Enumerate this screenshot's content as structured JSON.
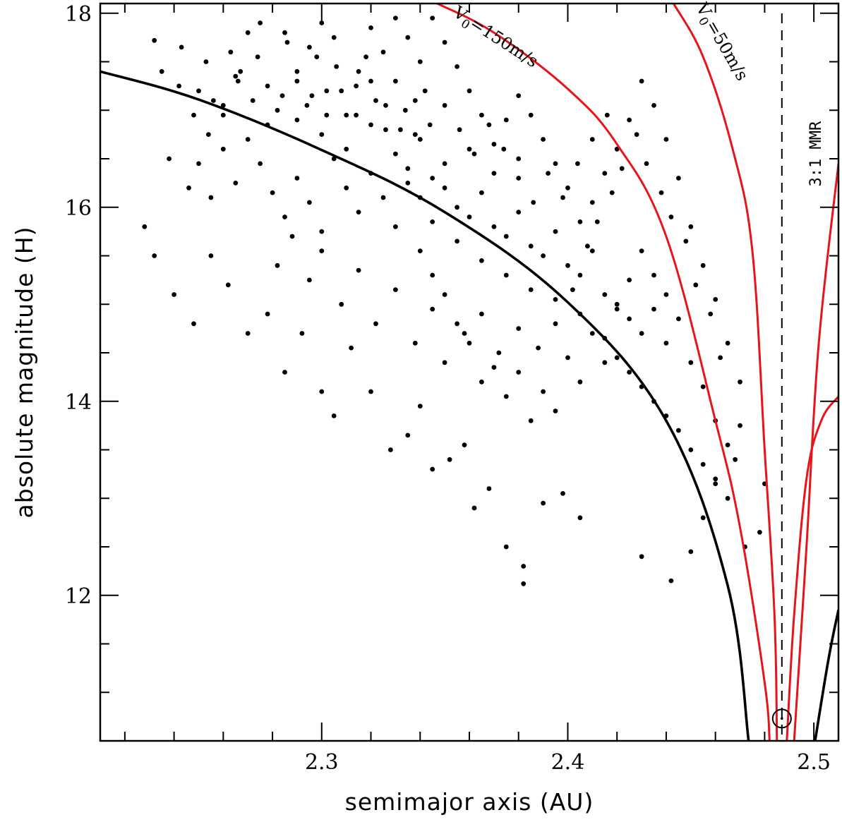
{
  "chart_data": {
    "type": "scatter",
    "title": "",
    "xlabel": "semimajor axis (AU)",
    "ylabel": "absolute magnitude (H)",
    "xlim": [
      2.21,
      2.51
    ],
    "ylim": [
      10.5,
      18.1
    ],
    "x_ticks": [
      2.3,
      2.4,
      2.5
    ],
    "y_ticks": [
      12,
      14,
      16,
      18
    ],
    "x_tick_labels": [
      "2.3",
      "2.4",
      "2.5"
    ],
    "y_tick_labels": [
      "12",
      "14",
      "16",
      "18"
    ],
    "grid": false,
    "legend": "none",
    "center_a": 2.487,
    "mmr_line": {
      "x": 2.487,
      "label": "3:1 MMR",
      "style": "dashed"
    },
    "center_marker": {
      "x": 2.487,
      "y": 10.73
    },
    "curves": [
      {
        "label": "",
        "color": "#000000",
        "points": [
          [
            2.21,
            17.4
          ],
          [
            2.25,
            17.11
          ],
          [
            2.3,
            16.59
          ],
          [
            2.35,
            15.95
          ],
          [
            2.4,
            15.02
          ],
          [
            2.44,
            13.8
          ],
          [
            2.465,
            12.1
          ],
          [
            2.4735,
            10.5
          ]
        ]
      },
      {
        "label": "",
        "color": "#000000",
        "points": [
          [
            2.5005,
            10.5
          ],
          [
            2.506,
            11.35
          ],
          [
            2.51,
            11.85
          ]
        ]
      },
      {
        "label": "V_0=150m/s",
        "color": "#e8141b",
        "points": [
          [
            2.347,
            18.1
          ],
          [
            2.37,
            17.8
          ],
          [
            2.4,
            17.22
          ],
          [
            2.42,
            16.65
          ],
          [
            2.44,
            15.7
          ],
          [
            2.46,
            13.8
          ],
          [
            2.47,
            12.7
          ],
          [
            2.48,
            11.1
          ],
          [
            2.482,
            10.5
          ]
        ]
      },
      {
        "label": "V_0=50m/s",
        "color": "#e8141b",
        "points": [
          [
            2.443,
            18.1
          ],
          [
            2.455,
            17.55
          ],
          [
            2.467,
            16.6
          ],
          [
            2.475,
            15.55
          ],
          [
            2.48,
            13.5
          ],
          [
            2.484,
            11.8
          ],
          [
            2.485,
            10.5
          ]
        ]
      },
      {
        "label": "",
        "color": "#e8141b",
        "points": [
          [
            2.489,
            10.5
          ],
          [
            2.492,
            11.8
          ],
          [
            2.497,
            13.2
          ],
          [
            2.503,
            13.8
          ],
          [
            2.51,
            14.05
          ]
        ]
      },
      {
        "label": "",
        "color": "#e8141b",
        "points": [
          [
            2.492,
            10.5
          ],
          [
            2.497,
            12.5
          ],
          [
            2.502,
            14.6
          ],
          [
            2.51,
            16.45
          ]
        ]
      }
    ],
    "curve_labels": [
      {
        "text": "V",
        "sub": "0",
        "rest": "=150m/s"
      },
      {
        "text": "V",
        "sub": "0",
        "rest": "=50m/s"
      }
    ],
    "points": [
      [
        2.232,
        17.72
      ],
      [
        2.235,
        17.4
      ],
      [
        2.238,
        16.5
      ],
      [
        2.243,
        17.65
      ],
      [
        2.246,
        16.2
      ],
      [
        2.25,
        17.2
      ],
      [
        2.253,
        17.5
      ],
      [
        2.256,
        17.1
      ],
      [
        2.26,
        16.95
      ],
      [
        2.263,
        17.6
      ],
      [
        2.267,
        17.4
      ],
      [
        2.27,
        17.8
      ],
      [
        2.274,
        17.55
      ],
      [
        2.278,
        17.25
      ],
      [
        2.282,
        17.0
      ],
      [
        2.286,
        17.7
      ],
      [
        2.29,
        17.3
      ],
      [
        2.294,
        17.05
      ],
      [
        2.298,
        17.55
      ],
      [
        2.302,
        17.2
      ],
      [
        2.306,
        17.45
      ],
      [
        2.31,
        16.95
      ],
      [
        2.314,
        17.25
      ],
      [
        2.318,
        17.55
      ],
      [
        2.322,
        17.1
      ],
      [
        2.326,
        16.8
      ],
      [
        2.33,
        17.3
      ],
      [
        2.334,
        17.0
      ],
      [
        2.338,
        16.75
      ],
      [
        2.342,
        17.2
      ],
      [
        2.29,
        16.9
      ],
      [
        2.3,
        16.75
      ],
      [
        2.31,
        16.6
      ],
      [
        2.32,
        16.85
      ],
      [
        2.33,
        16.55
      ],
      [
        2.34,
        16.7
      ],
      [
        2.35,
        16.45
      ],
      [
        2.36,
        16.6
      ],
      [
        2.37,
        16.35
      ],
      [
        2.38,
        16.5
      ],
      [
        2.345,
        16.3
      ],
      [
        2.35,
        16.2
      ],
      [
        2.355,
        16.0
      ],
      [
        2.36,
        15.9
      ],
      [
        2.365,
        16.15
      ],
      [
        2.37,
        15.8
      ],
      [
        2.375,
        15.7
      ],
      [
        2.38,
        15.95
      ],
      [
        2.385,
        15.6
      ],
      [
        2.39,
        15.5
      ],
      [
        2.395,
        15.75
      ],
      [
        2.4,
        15.4
      ],
      [
        2.405,
        15.3
      ],
      [
        2.41,
        15.55
      ],
      [
        2.415,
        15.1
      ],
      [
        2.42,
        15.0
      ],
      [
        2.425,
        14.85
      ],
      [
        2.43,
        14.7
      ],
      [
        2.435,
        14.95
      ],
      [
        2.44,
        14.6
      ],
      [
        2.335,
        16.4
      ],
      [
        2.34,
        16.1
      ],
      [
        2.345,
        15.85
      ],
      [
        2.355,
        15.65
      ],
      [
        2.365,
        15.45
      ],
      [
        2.375,
        15.3
      ],
      [
        2.385,
        15.15
      ],
      [
        2.395,
        15.05
      ],
      [
        2.405,
        14.9
      ],
      [
        2.415,
        14.65
      ],
      [
        2.42,
        14.45
      ],
      [
        2.425,
        14.3
      ],
      [
        2.43,
        14.15
      ],
      [
        2.435,
        14.0
      ],
      [
        2.44,
        13.85
      ],
      [
        2.445,
        13.7
      ],
      [
        2.45,
        13.5
      ],
      [
        2.455,
        13.35
      ],
      [
        2.46,
        13.2
      ],
      [
        2.465,
        13.0
      ],
      [
        2.228,
        15.8
      ],
      [
        2.232,
        15.5
      ],
      [
        2.24,
        15.1
      ],
      [
        2.248,
        14.8
      ],
      [
        2.255,
        15.5
      ],
      [
        2.262,
        15.2
      ],
      [
        2.27,
        14.7
      ],
      [
        2.278,
        14.9
      ],
      [
        2.285,
        14.3
      ],
      [
        2.292,
        14.7
      ],
      [
        2.3,
        14.1
      ],
      [
        2.305,
        13.85
      ],
      [
        2.312,
        14.55
      ],
      [
        2.32,
        14.1
      ],
      [
        2.328,
        13.5
      ],
      [
        2.335,
        13.65
      ],
      [
        2.34,
        13.95
      ],
      [
        2.345,
        13.3
      ],
      [
        2.352,
        13.4
      ],
      [
        2.358,
        13.55
      ],
      [
        2.362,
        12.9
      ],
      [
        2.368,
        13.1
      ],
      [
        2.375,
        12.5
      ],
      [
        2.382,
        12.3
      ],
      [
        2.382,
        12.12
      ],
      [
        2.39,
        12.95
      ],
      [
        2.398,
        13.05
      ],
      [
        2.405,
        12.8
      ],
      [
        2.43,
        12.4
      ],
      [
        2.442,
        12.15
      ],
      [
        2.45,
        12.45
      ],
      [
        2.455,
        12.8
      ],
      [
        2.46,
        13.15
      ],
      [
        2.468,
        13.4
      ],
      [
        2.472,
        12.5
      ],
      [
        2.478,
        12.65
      ],
      [
        2.48,
        13.15
      ],
      [
        2.47,
        14.2
      ],
      [
        2.465,
        14.6
      ],
      [
        2.46,
        15.05
      ],
      [
        2.455,
        15.4
      ],
      [
        2.45,
        15.8
      ],
      [
        2.445,
        16.3
      ],
      [
        2.44,
        16.7
      ],
      [
        2.435,
        17.05
      ],
      [
        2.43,
        17.3
      ],
      [
        2.425,
        16.9
      ],
      [
        2.42,
        16.6
      ],
      [
        2.415,
        16.35
      ],
      [
        2.41,
        16.05
      ],
      [
        2.405,
        15.85
      ],
      [
        2.4,
        16.2
      ],
      [
        2.395,
        16.45
      ],
      [
        2.39,
        16.7
      ],
      [
        2.385,
        16.95
      ],
      [
        2.38,
        17.15
      ],
      [
        2.375,
        16.9
      ],
      [
        2.37,
        16.65
      ],
      [
        2.365,
        16.95
      ],
      [
        2.36,
        17.2
      ],
      [
        2.355,
        17.45
      ],
      [
        2.35,
        17.7
      ],
      [
        2.345,
        17.95
      ],
      [
        2.34,
        17.5
      ],
      [
        2.335,
        17.75
      ],
      [
        2.33,
        17.95
      ],
      [
        2.325,
        17.6
      ],
      [
        2.32,
        17.85
      ],
      [
        2.315,
        17.4
      ],
      [
        2.305,
        17.75
      ],
      [
        2.3,
        17.9
      ],
      [
        2.295,
        17.65
      ],
      [
        2.285,
        17.8
      ],
      [
        2.275,
        17.9
      ],
      [
        2.265,
        17.35
      ],
      [
        2.26,
        16.6
      ],
      [
        2.255,
        16.1
      ],
      [
        2.25,
        16.45
      ],
      [
        2.265,
        16.25
      ],
      [
        2.27,
        16.7
      ],
      [
        2.275,
        16.45
      ],
      [
        2.28,
        16.15
      ],
      [
        2.285,
        15.9
      ],
      [
        2.29,
        16.3
      ],
      [
        2.295,
        16.05
      ],
      [
        2.3,
        15.75
      ],
      [
        2.305,
        16.5
      ],
      [
        2.31,
        16.2
      ],
      [
        2.315,
        15.95
      ],
      [
        2.32,
        16.35
      ],
      [
        2.325,
        16.1
      ],
      [
        2.33,
        15.8
      ],
      [
        2.335,
        16.25
      ],
      [
        2.34,
        15.55
      ],
      [
        2.345,
        15.3
      ],
      [
        2.35,
        15.1
      ],
      [
        2.355,
        14.8
      ],
      [
        2.36,
        14.6
      ],
      [
        2.365,
        14.9
      ],
      [
        2.37,
        14.35
      ],
      [
        2.375,
        14.05
      ],
      [
        2.38,
        14.3
      ],
      [
        2.385,
        13.8
      ],
      [
        2.39,
        14.1
      ],
      [
        2.395,
        13.9
      ],
      [
        2.4,
        14.45
      ],
      [
        2.405,
        14.2
      ],
      [
        2.41,
        14.7
      ],
      [
        2.415,
        14.4
      ],
      [
        2.42,
        14.95
      ],
      [
        2.425,
        15.25
      ],
      [
        2.43,
        15.55
      ],
      [
        2.435,
        15.3
      ],
      [
        2.44,
        15.1
      ],
      [
        2.445,
        14.85
      ],
      [
        2.45,
        14.4
      ],
      [
        2.455,
        14.15
      ],
      [
        2.46,
        13.8
      ],
      [
        2.465,
        13.55
      ],
      [
        2.47,
        13.75
      ],
      [
        2.282,
        15.4
      ],
      [
        2.288,
        15.7
      ],
      [
        2.295,
        15.25
      ],
      [
        2.3,
        15.55
      ],
      [
        2.308,
        15.0
      ],
      [
        2.315,
        15.35
      ],
      [
        2.322,
        14.8
      ],
      [
        2.33,
        15.15
      ],
      [
        2.338,
        14.6
      ],
      [
        2.345,
        14.95
      ],
      [
        2.35,
        14.4
      ],
      [
        2.358,
        14.7
      ],
      [
        2.365,
        14.2
      ],
      [
        2.372,
        14.5
      ],
      [
        2.38,
        14.75
      ],
      [
        2.388,
        14.55
      ],
      [
        2.395,
        14.8
      ],
      [
        2.402,
        15.15
      ],
      [
        2.408,
        15.6
      ],
      [
        2.412,
        15.85
      ],
      [
        2.418,
        16.15
      ],
      [
        2.422,
        16.4
      ],
      [
        2.428,
        16.75
      ],
      [
        2.432,
        16.45
      ],
      [
        2.438,
        16.15
      ],
      [
        2.442,
        15.9
      ],
      [
        2.448,
        15.65
      ],
      [
        2.452,
        15.2
      ],
      [
        2.458,
        14.9
      ],
      [
        2.462,
        14.45
      ],
      [
        2.242,
        17.25
      ],
      [
        2.248,
        16.95
      ],
      [
        2.254,
        16.75
      ],
      [
        2.26,
        17.05
      ],
      [
        2.266,
        17.3
      ],
      [
        2.272,
        17.1
      ],
      [
        2.278,
        16.85
      ],
      [
        2.284,
        17.15
      ],
      [
        2.29,
        17.4
      ],
      [
        2.296,
        17.15
      ],
      [
        2.302,
        16.95
      ],
      [
        2.308,
        17.2
      ],
      [
        2.314,
        16.95
      ],
      [
        2.32,
        17.3
      ],
      [
        2.326,
        17.05
      ],
      [
        2.332,
        16.8
      ],
      [
        2.338,
        17.1
      ],
      [
        2.344,
        16.85
      ],
      [
        2.35,
        17.05
      ],
      [
        2.356,
        16.8
      ],
      [
        2.362,
        16.55
      ],
      [
        2.368,
        16.85
      ],
      [
        2.374,
        16.6
      ],
      [
        2.38,
        16.3
      ],
      [
        2.386,
        16.05
      ],
      [
        2.392,
        16.35
      ],
      [
        2.398,
        16.1
      ],
      [
        2.404,
        16.45
      ],
      [
        2.41,
        16.7
      ],
      [
        2.416,
        16.95
      ]
    ]
  }
}
